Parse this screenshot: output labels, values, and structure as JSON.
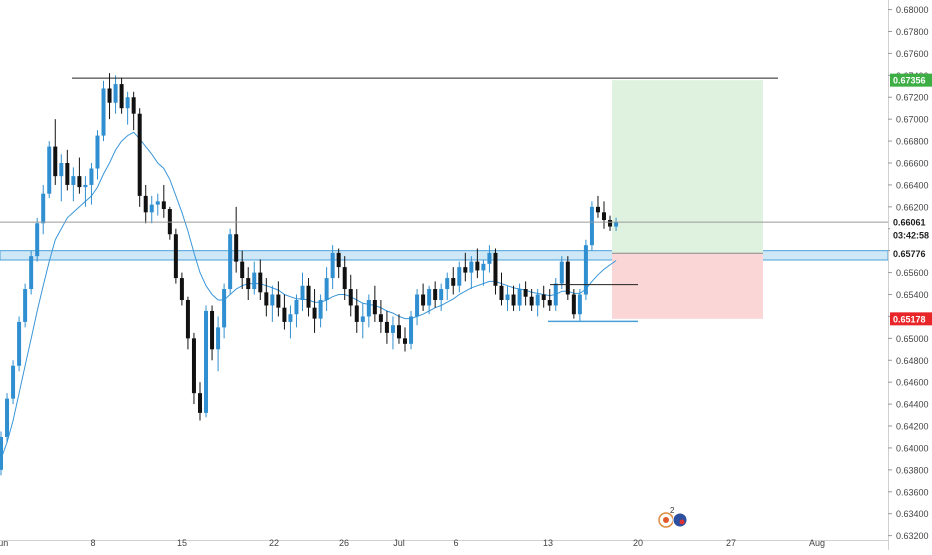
{
  "chart_data": {
    "type": "candlestick",
    "title": "",
    "x_tick_labels": [
      "Jun",
      "8",
      "15",
      "22",
      "26",
      "Jul",
      "6",
      "13",
      "20",
      "27",
      "Aug"
    ],
    "y_tick_labels": [
      "0.68000",
      "0.67800",
      "0.67600",
      "0.67400",
      "0.67200",
      "0.67000",
      "0.66800",
      "0.66600",
      "0.66400",
      "0.66200",
      "0.66000",
      "0.65800",
      "0.65600",
      "0.65400",
      "0.65200",
      "0.65000",
      "0.64800",
      "0.64600",
      "0.64400",
      "0.64200",
      "0.64000",
      "0.63800",
      "0.63600",
      "0.63400",
      "0.63200"
    ],
    "ylim": [
      0.6316,
      0.6806
    ],
    "grid": false,
    "ohlc": [
      [
        0.638,
        0.6415,
        0.6375,
        0.641
      ],
      [
        0.641,
        0.645,
        0.6405,
        0.6445
      ],
      [
        0.6445,
        0.648,
        0.644,
        0.6475
      ],
      [
        0.6475,
        0.652,
        0.647,
        0.6515
      ],
      [
        0.6515,
        0.655,
        0.651,
        0.6545
      ],
      [
        0.6545,
        0.658,
        0.654,
        0.6575
      ],
      [
        0.6575,
        0.661,
        0.657,
        0.6605
      ],
      [
        0.6605,
        0.664,
        0.6595,
        0.6632
      ],
      [
        0.6632,
        0.668,
        0.6628,
        0.6675
      ],
      [
        0.6675,
        0.67,
        0.664,
        0.6648
      ],
      [
        0.6648,
        0.6668,
        0.6625,
        0.666
      ],
      [
        0.666,
        0.6672,
        0.6635,
        0.664
      ],
      [
        0.664,
        0.6656,
        0.6625,
        0.6648
      ],
      [
        0.6648,
        0.6665,
        0.6632,
        0.6638
      ],
      [
        0.6638,
        0.6648,
        0.662,
        0.664
      ],
      [
        0.664,
        0.666,
        0.6622,
        0.6655
      ],
      [
        0.6655,
        0.669,
        0.6645,
        0.6685
      ],
      [
        0.6685,
        0.6735,
        0.668,
        0.6728
      ],
      [
        0.6728,
        0.6742,
        0.67,
        0.6715
      ],
      [
        0.6715,
        0.674,
        0.6705,
        0.6732
      ],
      [
        0.6732,
        0.6738,
        0.6705,
        0.671
      ],
      [
        0.671,
        0.6725,
        0.6695,
        0.672
      ],
      [
        0.672,
        0.6725,
        0.669,
        0.6705
      ],
      [
        0.6705,
        0.671,
        0.662,
        0.663
      ],
      [
        0.663,
        0.664,
        0.6605,
        0.6615
      ],
      [
        0.6615,
        0.663,
        0.6605,
        0.6622
      ],
      [
        0.6622,
        0.6632,
        0.6612,
        0.6625
      ],
      [
        0.6625,
        0.664,
        0.661,
        0.6618
      ],
      [
        0.6618,
        0.662,
        0.659,
        0.6595
      ],
      [
        0.6595,
        0.66,
        0.655,
        0.6555
      ],
      [
        0.6555,
        0.656,
        0.653,
        0.6535
      ],
      [
        0.6535,
        0.6538,
        0.649,
        0.65
      ],
      [
        0.65,
        0.6505,
        0.644,
        0.645
      ],
      [
        0.645,
        0.646,
        0.6425,
        0.6432
      ],
      [
        0.6432,
        0.653,
        0.6428,
        0.6525
      ],
      [
        0.6525,
        0.653,
        0.648,
        0.649
      ],
      [
        0.649,
        0.652,
        0.647,
        0.651
      ],
      [
        0.651,
        0.655,
        0.65,
        0.6545
      ],
      [
        0.6545,
        0.66,
        0.654,
        0.6595
      ],
      [
        0.6595,
        0.662,
        0.656,
        0.657
      ],
      [
        0.657,
        0.658,
        0.6545,
        0.6555
      ],
      [
        0.6555,
        0.6565,
        0.6535,
        0.6545
      ],
      [
        0.6545,
        0.657,
        0.654,
        0.656
      ],
      [
        0.656,
        0.6572,
        0.6535,
        0.6542
      ],
      [
        0.6542,
        0.6555,
        0.652,
        0.653
      ],
      [
        0.653,
        0.6548,
        0.6515,
        0.654
      ],
      [
        0.654,
        0.6552,
        0.652,
        0.6528
      ],
      [
        0.6528,
        0.654,
        0.6508,
        0.6515
      ],
      [
        0.6515,
        0.653,
        0.65,
        0.6522
      ],
      [
        0.6522,
        0.654,
        0.651,
        0.6535
      ],
      [
        0.6535,
        0.656,
        0.6525,
        0.6548
      ],
      [
        0.6548,
        0.6555,
        0.652,
        0.6528
      ],
      [
        0.6528,
        0.6545,
        0.6505,
        0.6518
      ],
      [
        0.6518,
        0.654,
        0.651,
        0.6535
      ],
      [
        0.6535,
        0.6565,
        0.6525,
        0.6555
      ],
      [
        0.6555,
        0.6585,
        0.6545,
        0.6578
      ],
      [
        0.6578,
        0.6582,
        0.6555,
        0.6565
      ],
      [
        0.6565,
        0.6575,
        0.6535,
        0.6545
      ],
      [
        0.6545,
        0.6558,
        0.652,
        0.653
      ],
      [
        0.653,
        0.6545,
        0.6505,
        0.6515
      ],
      [
        0.6515,
        0.6532,
        0.65,
        0.652
      ],
      [
        0.652,
        0.654,
        0.651,
        0.6535
      ],
      [
        0.6535,
        0.6548,
        0.6515,
        0.6522
      ],
      [
        0.6522,
        0.6535,
        0.6505,
        0.6515
      ],
      [
        0.6515,
        0.6525,
        0.6495,
        0.6505
      ],
      [
        0.6505,
        0.652,
        0.649,
        0.6512
      ],
      [
        0.6512,
        0.6522,
        0.6495,
        0.65
      ],
      [
        0.65,
        0.651,
        0.6488,
        0.6495
      ],
      [
        0.6495,
        0.6525,
        0.649,
        0.652
      ],
      [
        0.652,
        0.6545,
        0.6512,
        0.654
      ],
      [
        0.654,
        0.655,
        0.6525,
        0.653
      ],
      [
        0.653,
        0.6548,
        0.6522,
        0.6545
      ],
      [
        0.6545,
        0.6552,
        0.6528,
        0.6535
      ],
      [
        0.6535,
        0.655,
        0.6525,
        0.6545
      ],
      [
        0.6545,
        0.656,
        0.6535,
        0.6555
      ],
      [
        0.6555,
        0.6565,
        0.654,
        0.6548
      ],
      [
        0.6548,
        0.657,
        0.6542,
        0.6565
      ],
      [
        0.6565,
        0.6578,
        0.6552,
        0.656
      ],
      [
        0.656,
        0.6575,
        0.6545,
        0.657
      ],
      [
        0.657,
        0.6582,
        0.6555,
        0.6562
      ],
      [
        0.6562,
        0.6572,
        0.6548,
        0.6568
      ],
      [
        0.6568,
        0.6585,
        0.656,
        0.6578
      ],
      [
        0.6578,
        0.6582,
        0.654,
        0.6548
      ],
      [
        0.6548,
        0.656,
        0.653,
        0.6535
      ],
      [
        0.6535,
        0.6548,
        0.6525,
        0.654
      ],
      [
        0.654,
        0.6548,
        0.6525,
        0.653
      ],
      [
        0.653,
        0.655,
        0.6525,
        0.6545
      ],
      [
        0.6545,
        0.6552,
        0.653,
        0.6538
      ],
      [
        0.6538,
        0.6545,
        0.6525,
        0.653
      ],
      [
        0.653,
        0.6545,
        0.652,
        0.654
      ],
      [
        0.654,
        0.6548,
        0.6528,
        0.6535
      ],
      [
        0.6535,
        0.6545,
        0.6525,
        0.653
      ],
      [
        0.653,
        0.6555,
        0.6525,
        0.655
      ],
      [
        0.655,
        0.6575,
        0.6545,
        0.657
      ],
      [
        0.657,
        0.6575,
        0.6535,
        0.654
      ],
      [
        0.654,
        0.6545,
        0.6518,
        0.6522
      ],
      [
        0.6522,
        0.6545,
        0.6515,
        0.654
      ],
      [
        0.654,
        0.659,
        0.6535,
        0.6585
      ],
      [
        0.6585,
        0.6625,
        0.658,
        0.662
      ],
      [
        0.662,
        0.663,
        0.661,
        0.6615
      ],
      [
        0.6615,
        0.6625,
        0.66,
        0.6608
      ],
      [
        0.6608,
        0.6612,
        0.6598,
        0.6602
      ],
      [
        0.6602,
        0.661,
        0.6598,
        0.6606
      ]
    ],
    "moving_average": [
      0.639,
      0.6405,
      0.6425,
      0.645,
      0.6475,
      0.65,
      0.6525,
      0.6548,
      0.657,
      0.659,
      0.66,
      0.661,
      0.6615,
      0.662,
      0.6625,
      0.663,
      0.6638,
      0.665,
      0.666,
      0.6672,
      0.668,
      0.6685,
      0.6688,
      0.6682,
      0.6675,
      0.6668,
      0.666,
      0.6655,
      0.6645,
      0.663,
      0.6615,
      0.6598,
      0.6578,
      0.656,
      0.6548,
      0.654,
      0.6535,
      0.6535,
      0.654,
      0.6545,
      0.6548,
      0.655,
      0.655,
      0.655,
      0.6548,
      0.6546,
      0.6544,
      0.654,
      0.6538,
      0.6536,
      0.6536,
      0.6535,
      0.6533,
      0.6533,
      0.6535,
      0.6538,
      0.654,
      0.654,
      0.6538,
      0.6535,
      0.6532,
      0.6531,
      0.653,
      0.6528,
      0.6525,
      0.6523,
      0.652,
      0.6518,
      0.6518,
      0.652,
      0.6522,
      0.6525,
      0.6528,
      0.653,
      0.6533,
      0.6536,
      0.654,
      0.6543,
      0.6546,
      0.6548,
      0.655,
      0.6552,
      0.6552,
      0.655,
      0.6548,
      0.6546,
      0.6545,
      0.6544,
      0.6542,
      0.6541,
      0.654,
      0.6539,
      0.654,
      0.6543,
      0.6543,
      0.6541,
      0.6541,
      0.6545,
      0.6552,
      0.6558,
      0.6563,
      0.6567,
      0.6571
    ],
    "horizontal_levels": {
      "resistance": 0.67375,
      "zone_top": 0.658,
      "zone_bottom": 0.65715,
      "low_line": 0.65155,
      "mid_line": 0.6549,
      "current_line": 0.66061
    },
    "position_tool": {
      "entry": 0.65776,
      "target": 0.67356,
      "stop": 0.65178
    },
    "price_labels": {
      "target": "0.67356",
      "current": "0.66061",
      "countdown": "03:42:58",
      "entry": "0.65776",
      "stop": "0.65178"
    },
    "event_badge_count": "2",
    "colors": {
      "bullish": "#2f8fd0",
      "bearish": "#111111",
      "ma": "#3a96d8",
      "target_zone": "#dff2df",
      "stop_zone": "#fbd6d6",
      "target_label": "#3cae44",
      "stop_label": "#e8262a",
      "current_label": "#1c1c1c",
      "entry_label": "#888888",
      "support_zone": "#cfe8f7",
      "support_zone_border": "#4a9fd8"
    }
  }
}
